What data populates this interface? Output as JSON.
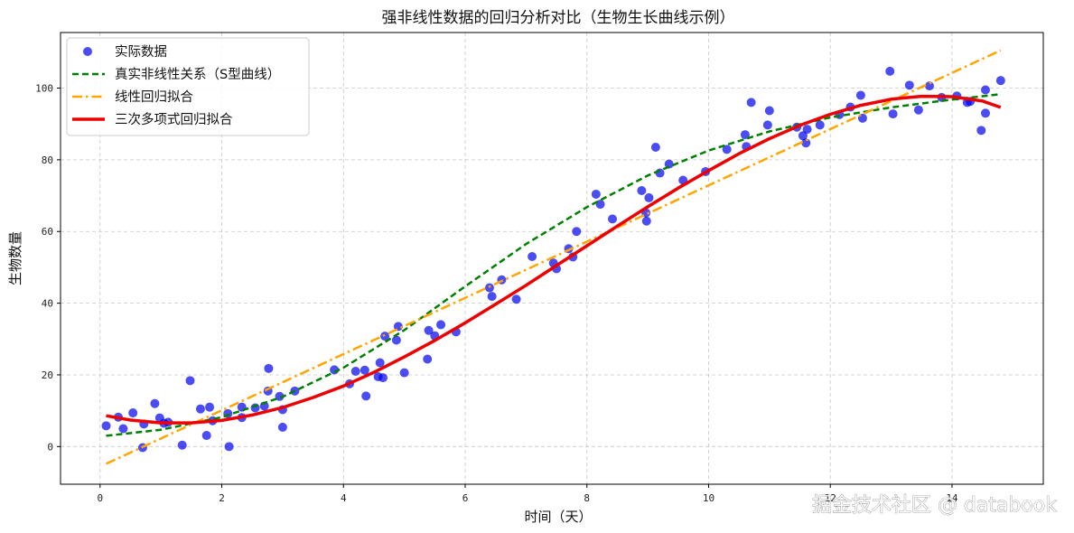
{
  "chart_data": {
    "type": "scatter",
    "title": "强非线性数据的回归分析对比（生物生长曲线示例）",
    "xlabel": "时间（天）",
    "ylabel": "生物数量",
    "xlim": [
      -0.65,
      15.5
    ],
    "ylim": [
      -10.5,
      115.5
    ],
    "xticks": [
      0,
      2,
      4,
      6,
      8,
      10,
      12,
      14
    ],
    "yticks": [
      0,
      20,
      40,
      60,
      80,
      100
    ],
    "grid": true,
    "legend_position": "top-left",
    "series": [
      {
        "name": "实际数据",
        "kind": "scatter",
        "color": "#0000ee",
        "points": [
          [
            0.1,
            5.8
          ],
          [
            0.3,
            8.2
          ],
          [
            0.38,
            5.0
          ],
          [
            0.54,
            9.4
          ],
          [
            0.7,
            -0.3
          ],
          [
            0.72,
            6.3
          ],
          [
            0.9,
            12.0
          ],
          [
            0.98,
            8.0
          ],
          [
            1.05,
            6.5
          ],
          [
            1.12,
            6.8
          ],
          [
            1.35,
            0.4
          ],
          [
            1.48,
            18.4
          ],
          [
            1.65,
            10.5
          ],
          [
            1.75,
            3.1
          ],
          [
            1.8,
            11.0
          ],
          [
            1.85,
            7.2
          ],
          [
            2.1,
            9.2
          ],
          [
            2.12,
            0.0
          ],
          [
            2.33,
            8.1
          ],
          [
            2.33,
            11.0
          ],
          [
            2.55,
            10.8
          ],
          [
            2.7,
            11.3
          ],
          [
            2.77,
            21.8
          ],
          [
            2.76,
            15.5
          ],
          [
            2.95,
            14.0
          ],
          [
            3.0,
            5.4
          ],
          [
            3.0,
            10.3
          ],
          [
            3.2,
            15.5
          ],
          [
            3.85,
            21.4
          ],
          [
            4.1,
            17.5
          ],
          [
            4.2,
            21.0
          ],
          [
            4.35,
            21.3
          ],
          [
            4.37,
            14.1
          ],
          [
            4.57,
            19.5
          ],
          [
            4.6,
            23.4
          ],
          [
            4.65,
            19.2
          ],
          [
            4.68,
            30.8
          ],
          [
            4.87,
            29.7
          ],
          [
            4.9,
            33.5
          ],
          [
            5.0,
            20.6
          ],
          [
            5.38,
            24.4
          ],
          [
            5.4,
            32.4
          ],
          [
            5.5,
            30.9
          ],
          [
            5.6,
            34.0
          ],
          [
            5.85,
            32.0
          ],
          [
            6.4,
            44.3
          ],
          [
            6.44,
            41.9
          ],
          [
            6.6,
            46.5
          ],
          [
            6.84,
            41.1
          ],
          [
            7.1,
            53.0
          ],
          [
            7.45,
            51.2
          ],
          [
            7.5,
            49.6
          ],
          [
            7.7,
            55.2
          ],
          [
            7.77,
            52.9
          ],
          [
            7.83,
            60.0
          ],
          [
            8.15,
            70.4
          ],
          [
            8.22,
            67.6
          ],
          [
            8.42,
            63.5
          ],
          [
            8.9,
            71.4
          ],
          [
            8.97,
            65.2
          ],
          [
            8.98,
            62.9
          ],
          [
            9.02,
            69.4
          ],
          [
            9.13,
            83.5
          ],
          [
            9.2,
            76.3
          ],
          [
            9.35,
            78.8
          ],
          [
            9.58,
            74.3
          ],
          [
            9.95,
            76.7
          ],
          [
            10.3,
            82.9
          ],
          [
            10.6,
            87.0
          ],
          [
            10.62,
            83.7
          ],
          [
            10.7,
            96.0
          ],
          [
            10.97,
            89.7
          ],
          [
            11.0,
            93.7
          ],
          [
            11.45,
            89.1
          ],
          [
            11.55,
            86.7
          ],
          [
            11.6,
            84.7
          ],
          [
            11.62,
            88.5
          ],
          [
            11.83,
            89.7
          ],
          [
            12.15,
            92.6
          ],
          [
            12.33,
            94.7
          ],
          [
            12.5,
            98.0
          ],
          [
            12.53,
            91.6
          ],
          [
            12.98,
            104.7
          ],
          [
            13.03,
            92.8
          ],
          [
            13.3,
            100.8
          ],
          [
            13.45,
            93.9
          ],
          [
            13.63,
            100.6
          ],
          [
            13.83,
            97.4
          ],
          [
            14.08,
            97.8
          ],
          [
            14.25,
            96.0
          ],
          [
            14.3,
            96.3
          ],
          [
            14.48,
            88.2
          ],
          [
            14.55,
            93.0
          ],
          [
            14.55,
            99.5
          ],
          [
            14.8,
            102.1
          ]
        ]
      },
      {
        "name": "真实非线性关系（S型曲线）",
        "kind": "line",
        "style": "dashed",
        "color": "#008000",
        "x": [
          0.1,
          1,
          2,
          3,
          4,
          5,
          6,
          7,
          8,
          9,
          10,
          11,
          12,
          13,
          14,
          14.8
        ],
        "y": [
          3.0,
          4.7,
          8.2,
          13.9,
          22.0,
          32.5,
          44.7,
          56.5,
          66.8,
          75.6,
          82.6,
          87.9,
          91.8,
          94.6,
          96.8,
          98.3
        ]
      },
      {
        "name": "线性回归拟合",
        "kind": "line",
        "style": "dashdot",
        "color": "#ffa500",
        "x": [
          0.1,
          14.8
        ],
        "y": [
          -4.8,
          110.5
        ]
      },
      {
        "name": "三次多项式回归拟合",
        "kind": "line",
        "style": "solid",
        "color": "#ee0000",
        "x": [
          0.1,
          0.5,
          1,
          1.5,
          2,
          2.5,
          3,
          3.5,
          4,
          4.5,
          5,
          5.5,
          6,
          6.5,
          7,
          7.5,
          8,
          8.5,
          9,
          9.5,
          10,
          10.5,
          11,
          11.5,
          12,
          12.5,
          13,
          13.5,
          14,
          14.5,
          14.8
        ],
        "y": [
          8.6,
          7.4,
          6.6,
          6.6,
          7.3,
          8.8,
          10.9,
          13.7,
          16.9,
          20.7,
          25.0,
          29.6,
          34.5,
          39.7,
          45.0,
          50.5,
          56.0,
          61.5,
          66.9,
          72.1,
          77.0,
          81.7,
          85.9,
          89.6,
          92.7,
          95.2,
          96.9,
          97.7,
          97.6,
          96.4,
          94.6
        ]
      }
    ]
  },
  "watermark": "掘金技术社区 @ databook"
}
